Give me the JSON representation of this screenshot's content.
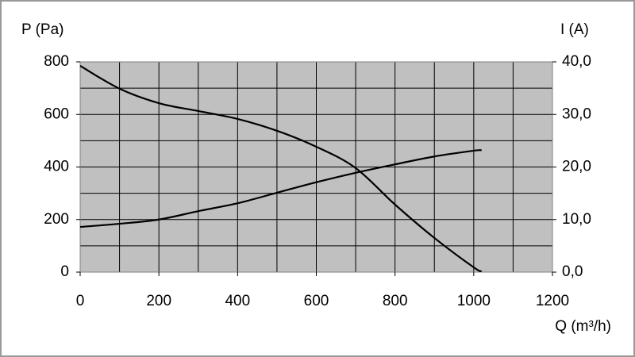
{
  "chart_data": {
    "type": "line",
    "y_label": "P (Pa)",
    "y2_label": "I (A)",
    "x_label": "Q (m³/h)",
    "x": [
      0,
      100,
      200,
      300,
      400,
      500,
      600,
      700,
      800,
      900,
      1000,
      1020
    ],
    "series": [
      {
        "color": "#000000",
        "values": [
          785,
          698,
          643,
          613,
          583,
          538,
          477,
          396,
          257,
          130,
          18,
          3
        ]
      },
      {
        "color": "#000000",
        "axis": "y2",
        "values": [
          8.6,
          9.2,
          10.0,
          11.6,
          13.1,
          15.1,
          17.1,
          18.9,
          20.5,
          22.0,
          23.1,
          23.2
        ]
      }
    ],
    "xlim": [
      0,
      1200
    ],
    "xticks": [
      0,
      200,
      400,
      600,
      800,
      1000,
      1200
    ],
    "ylim": [
      0,
      800
    ],
    "yticks": [
      0,
      200,
      400,
      600,
      800
    ],
    "y2lim": [
      0,
      40
    ],
    "y2ticks": [
      {
        "value": 0,
        "label": "0,0"
      },
      {
        "value": 10,
        "label": "10,0"
      },
      {
        "value": 20,
        "label": "20,0"
      },
      {
        "value": 30,
        "label": "30,0"
      },
      {
        "value": 40,
        "label": "40,0"
      }
    ],
    "xgrid": [
      0,
      100,
      200,
      300,
      400,
      500,
      600,
      700,
      800,
      900,
      1000,
      1100,
      1200
    ],
    "ygrid": [
      0,
      100,
      200,
      300,
      400,
      500,
      600,
      700,
      800
    ],
    "plot_background": "#c0c0c0"
  }
}
